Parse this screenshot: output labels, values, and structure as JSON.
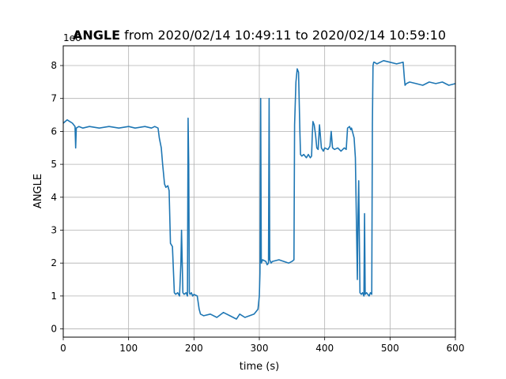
{
  "chart_data": {
    "type": "line",
    "title_bold": "ANGLE",
    "title_rest": " from 2020/02/14 10:49:11 to 2020/02/14 10:59:10",
    "xlabel": "time (s)",
    "ylabel": "ANGLE",
    "offset_label": "1e6",
    "xlim": [
      0,
      600
    ],
    "ylim": [
      -0.25,
      8.6
    ],
    "xticks": [
      0,
      100,
      200,
      300,
      400,
      500,
      600
    ],
    "yticks": [
      0,
      1,
      2,
      3,
      4,
      5,
      6,
      7,
      8
    ],
    "grid": true,
    "line_color": "#1f77b4",
    "series": [
      {
        "x": [
          0,
          3,
          6,
          10,
          14,
          18,
          19,
          20,
          24,
          30,
          40,
          55,
          70,
          85,
          100,
          110,
          125,
          135,
          140,
          145,
          147,
          150,
          152,
          155,
          157,
          160,
          162,
          164,
          167,
          170,
          172,
          175,
          178,
          180,
          181,
          182,
          183,
          185,
          188,
          190,
          191,
          192,
          193,
          194,
          196,
          198,
          200,
          205,
          208,
          210,
          215,
          225,
          235,
          245,
          255,
          265,
          270,
          278,
          285,
          292,
          298,
          300,
          301,
          302,
          303,
          305,
          310,
          312,
          314,
          315,
          316,
          318,
          320,
          330,
          345,
          350,
          353,
          354,
          356,
          358,
          360,
          362,
          363,
          365,
          368,
          372,
          375,
          378,
          380,
          381,
          382,
          384,
          386,
          388,
          390,
          392,
          395,
          398,
          400,
          405,
          408,
          410,
          412,
          415,
          420,
          425,
          430,
          433,
          435,
          438,
          440,
          441,
          445,
          447,
          448,
          450,
          451,
          452,
          454,
          456,
          458,
          460,
          461,
          462,
          464,
          468,
          470,
          472,
          473,
          474,
          475,
          476,
          480,
          490,
          500,
          510,
          520,
          522,
          523,
          525,
          530,
          540,
          550,
          560,
          570,
          580,
          590,
          600
        ],
        "y": [
          6.25,
          6.3,
          6.35,
          6.3,
          6.25,
          6.15,
          5.5,
          6.1,
          6.15,
          6.1,
          6.15,
          6.1,
          6.15,
          6.1,
          6.15,
          6.1,
          6.15,
          6.1,
          6.15,
          6.1,
          5.8,
          5.5,
          5.0,
          4.4,
          4.3,
          4.35,
          4.2,
          2.6,
          2.5,
          1.1,
          1.05,
          1.1,
          1.0,
          2.0,
          3.0,
          2.0,
          1.1,
          1.05,
          1.1,
          1.0,
          6.4,
          5.0,
          1.1,
          1.05,
          1.1,
          1.0,
          1.05,
          1.0,
          0.6,
          0.45,
          0.4,
          0.45,
          0.35,
          0.5,
          0.4,
          0.3,
          0.45,
          0.35,
          0.4,
          0.45,
          0.6,
          1.0,
          1.7,
          7.0,
          2.0,
          2.1,
          2.05,
          1.95,
          2.0,
          7.0,
          2.1,
          2.0,
          2.05,
          2.1,
          2.0,
          2.05,
          2.1,
          6.2,
          7.5,
          7.9,
          7.8,
          6.0,
          5.3,
          5.25,
          5.3,
          5.2,
          5.3,
          5.2,
          5.25,
          5.9,
          6.3,
          6.2,
          5.9,
          5.5,
          5.45,
          6.2,
          5.5,
          5.4,
          5.5,
          5.45,
          5.55,
          6.0,
          5.5,
          5.45,
          5.5,
          5.4,
          5.5,
          5.45,
          6.1,
          6.15,
          6.05,
          6.1,
          5.8,
          5.2,
          4.0,
          1.5,
          3.4,
          4.5,
          1.1,
          1.05,
          1.1,
          1.0,
          3.5,
          1.05,
          1.1,
          1.0,
          1.1,
          1.05,
          6.2,
          8.0,
          8.1,
          8.1,
          8.05,
          8.15,
          8.1,
          8.05,
          8.1,
          7.6,
          7.4,
          7.45,
          7.5,
          7.45,
          7.4,
          7.5,
          7.45,
          7.5,
          7.4,
          7.45
        ]
      }
    ]
  }
}
